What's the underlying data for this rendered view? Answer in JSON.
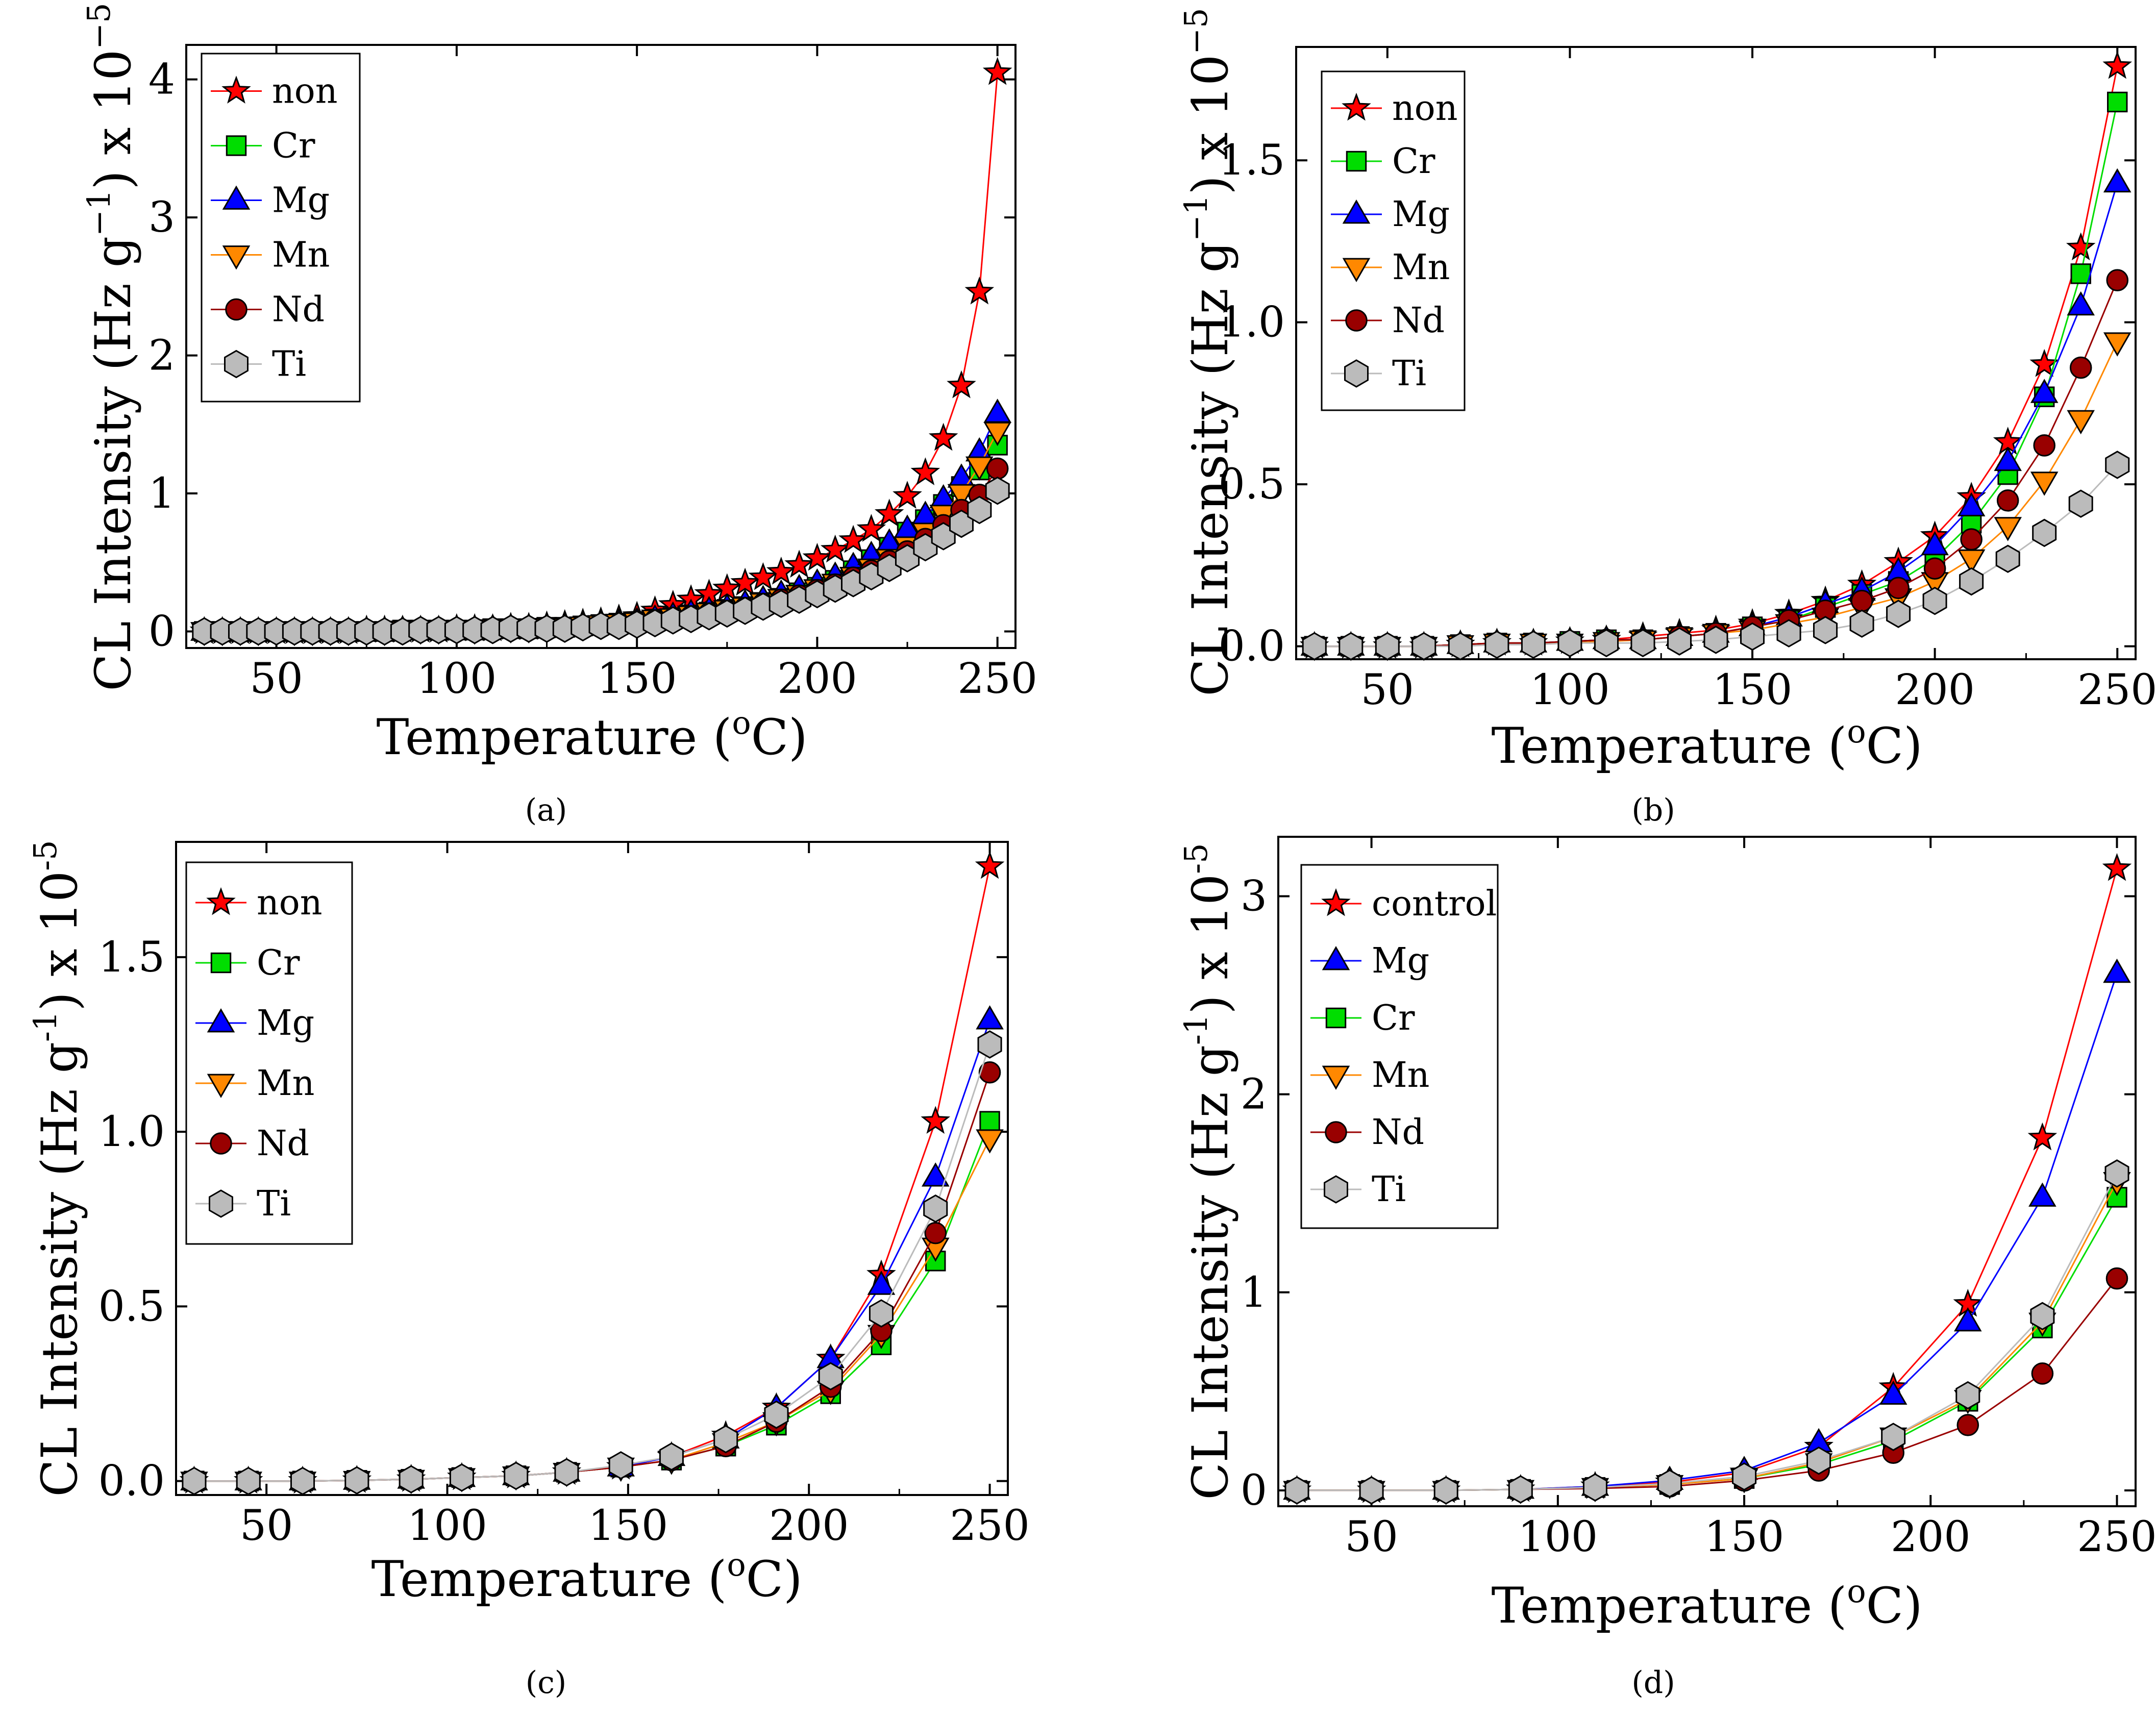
{
  "figure_labels": [
    "(a)",
    "(b)",
    "(c)",
    "(d)"
  ],
  "chart_data": [
    {
      "type": "line",
      "panel": "(a)",
      "xlabel": "Temperature (oC)",
      "xlabel_parts": {
        "main": "Temperature (",
        "sup": "o",
        "end": "C)"
      },
      "ylabel": "CL Intensity (Hz g-1) x 10-5",
      "ylabel_parts": {
        "main": "CL Intensity (Hz g",
        "sup1": "−1",
        "mid": ") x 10",
        "sup2": "−5"
      },
      "xlim": [
        25,
        255
      ],
      "ylim": [
        -0.12,
        4.25
      ],
      "xticks": [
        50,
        100,
        150,
        200,
        250
      ],
      "yticks": [
        0,
        1,
        2,
        3,
        4
      ],
      "ytick_labels": [
        "0",
        "1",
        "2",
        "3",
        "4"
      ],
      "x": [
        30,
        35,
        40,
        45,
        50,
        55,
        60,
        65,
        70,
        75,
        80,
        85,
        90,
        95,
        100,
        105,
        110,
        115,
        120,
        125,
        130,
        135,
        140,
        145,
        150,
        155,
        160,
        165,
        170,
        175,
        180,
        185,
        190,
        195,
        200,
        205,
        210,
        215,
        220,
        225,
        230,
        235,
        240,
        245,
        250
      ],
      "legend": {
        "position": "top-left",
        "entries": [
          "non",
          "Cr",
          "Mg",
          "Mn",
          "Nd",
          "Ti"
        ]
      },
      "series": [
        {
          "name": "non",
          "marker": "star",
          "color": "#ff0000",
          "values": [
            0,
            0,
            0,
            0,
            0,
            0,
            0,
            0,
            0,
            0.01,
            0.01,
            0.01,
            0.01,
            0.01,
            0.02,
            0.02,
            0.02,
            0.03,
            0.03,
            0.04,
            0.05,
            0.06,
            0.07,
            0.09,
            0.11,
            0.15,
            0.19,
            0.23,
            0.27,
            0.31,
            0.35,
            0.39,
            0.43,
            0.48,
            0.53,
            0.59,
            0.66,
            0.74,
            0.85,
            0.98,
            1.15,
            1.4,
            1.78,
            2.46,
            4.05
          ]
        },
        {
          "name": "Cr",
          "marker": "square",
          "color": "#00dd00",
          "values": [
            0,
            0,
            0,
            0,
            0,
            0,
            0,
            0,
            0,
            0,
            0,
            0.01,
            0.01,
            0.01,
            0.01,
            0.01,
            0.02,
            0.02,
            0.02,
            0.03,
            0.03,
            0.04,
            0.05,
            0.06,
            0.07,
            0.09,
            0.1,
            0.12,
            0.14,
            0.16,
            0.18,
            0.21,
            0.24,
            0.28,
            0.32,
            0.37,
            0.44,
            0.52,
            0.61,
            0.72,
            0.81,
            0.92,
            1.05,
            1.17,
            1.35
          ]
        },
        {
          "name": "Mg",
          "marker": "triangle-up",
          "color": "#0000ff",
          "values": [
            0,
            0,
            0,
            0,
            0,
            0,
            0,
            0,
            0,
            0,
            0,
            0.01,
            0.01,
            0.01,
            0.01,
            0.01,
            0.02,
            0.02,
            0.02,
            0.03,
            0.03,
            0.04,
            0.05,
            0.06,
            0.07,
            0.09,
            0.11,
            0.13,
            0.15,
            0.17,
            0.2,
            0.23,
            0.27,
            0.31,
            0.35,
            0.4,
            0.47,
            0.55,
            0.64,
            0.74,
            0.84,
            0.96,
            1.11,
            1.3,
            1.58
          ]
        },
        {
          "name": "Mn",
          "marker": "triangle-down",
          "color": "#ff8800",
          "values": [
            0,
            0,
            0,
            0,
            0,
            0,
            0,
            0,
            0,
            0,
            0,
            0.01,
            0.01,
            0.01,
            0.01,
            0.01,
            0.02,
            0.02,
            0.02,
            0.03,
            0.03,
            0.04,
            0.05,
            0.06,
            0.07,
            0.09,
            0.1,
            0.12,
            0.14,
            0.16,
            0.18,
            0.21,
            0.24,
            0.27,
            0.31,
            0.35,
            0.4,
            0.46,
            0.53,
            0.62,
            0.72,
            0.85,
            1.0,
            1.2,
            1.45
          ]
        },
        {
          "name": "Nd",
          "marker": "circle",
          "color": "#990000",
          "values": [
            0,
            0,
            0,
            0,
            0,
            0,
            0,
            0,
            0,
            0,
            0,
            0,
            0.01,
            0.01,
            0.01,
            0.01,
            0.01,
            0.02,
            0.02,
            0.02,
            0.03,
            0.03,
            0.04,
            0.05,
            0.06,
            0.08,
            0.09,
            0.11,
            0.13,
            0.15,
            0.17,
            0.2,
            0.23,
            0.26,
            0.3,
            0.34,
            0.39,
            0.44,
            0.51,
            0.58,
            0.67,
            0.77,
            0.88,
            0.99,
            1.18
          ]
        },
        {
          "name": "Ti",
          "marker": "hexagon",
          "color": "#bbbbbb",
          "values": [
            0,
            0,
            0,
            0,
            0,
            0,
            0,
            0,
            0,
            0,
            0,
            0,
            0.01,
            0.01,
            0.01,
            0.01,
            0.01,
            0.02,
            0.02,
            0.02,
            0.02,
            0.03,
            0.04,
            0.04,
            0.05,
            0.06,
            0.08,
            0.09,
            0.11,
            0.13,
            0.15,
            0.18,
            0.2,
            0.23,
            0.27,
            0.31,
            0.35,
            0.4,
            0.46,
            0.53,
            0.61,
            0.69,
            0.78,
            0.88,
            1.02
          ]
        }
      ]
    },
    {
      "type": "line",
      "panel": "(b)",
      "xlabel": "Temperature (oC)",
      "xlabel_parts": {
        "main": "Temperature (",
        "sup": "o",
        "end": "C)"
      },
      "ylabel": "CL Intensity (Hz g-1) x 10-5",
      "ylabel_parts": {
        "main": "CL Intensity (Hz g",
        "sup1": "−1",
        "mid": ") x 10",
        "sup2": "−5"
      },
      "xlim": [
        25,
        255
      ],
      "ylim": [
        -0.04,
        1.85
      ],
      "xticks": [
        50,
        100,
        150,
        200,
        250
      ],
      "yticks": [
        0,
        0.5,
        1.0,
        1.5
      ],
      "ytick_labels": [
        "0.0",
        "0.5",
        "1.0",
        "1.5"
      ],
      "x": [
        30,
        40,
        50,
        60,
        70,
        80,
        90,
        100,
        110,
        120,
        130,
        140,
        150,
        160,
        170,
        180,
        190,
        200,
        210,
        220,
        230,
        240,
        250
      ],
      "legend": {
        "position": "top-left",
        "entries": [
          "non",
          "Cr",
          "Mg",
          "Mn",
          "Nd",
          "Ti"
        ]
      },
      "series": [
        {
          "name": "non",
          "marker": "star",
          "color": "#ff0000",
          "values": [
            0,
            0,
            0,
            0,
            0.005,
            0.01,
            0.01,
            0.015,
            0.02,
            0.03,
            0.04,
            0.05,
            0.07,
            0.1,
            0.14,
            0.19,
            0.26,
            0.34,
            0.46,
            0.63,
            0.87,
            1.23,
            1.79
          ]
        },
        {
          "name": "Cr",
          "marker": "square",
          "color": "#00dd00",
          "values": [
            0,
            0,
            0,
            0,
            0.005,
            0.01,
            0.01,
            0.015,
            0.02,
            0.02,
            0.03,
            0.04,
            0.06,
            0.08,
            0.12,
            0.16,
            0.2,
            0.27,
            0.38,
            0.53,
            0.77,
            1.15,
            1.68
          ]
        },
        {
          "name": "Mg",
          "marker": "triangle-up",
          "color": "#0000ff",
          "values": [
            0,
            0,
            0,
            0,
            0.005,
            0.01,
            0.01,
            0.015,
            0.02,
            0.02,
            0.03,
            0.04,
            0.06,
            0.09,
            0.13,
            0.17,
            0.23,
            0.31,
            0.43,
            0.57,
            0.78,
            1.05,
            1.43
          ]
        },
        {
          "name": "Mn",
          "marker": "triangle-down",
          "color": "#ff8800",
          "values": [
            0,
            0,
            0,
            0,
            0.005,
            0.01,
            0.01,
            0.01,
            0.015,
            0.02,
            0.03,
            0.04,
            0.05,
            0.07,
            0.09,
            0.12,
            0.15,
            0.2,
            0.27,
            0.37,
            0.51,
            0.7,
            0.94
          ]
        },
        {
          "name": "Nd",
          "marker": "circle",
          "color": "#990000",
          "values": [
            0,
            0,
            0,
            0,
            0.005,
            0.01,
            0.01,
            0.015,
            0.02,
            0.02,
            0.03,
            0.04,
            0.06,
            0.08,
            0.11,
            0.14,
            0.18,
            0.24,
            0.33,
            0.45,
            0.62,
            0.86,
            1.13
          ]
        },
        {
          "name": "Ti",
          "marker": "hexagon",
          "color": "#bbbbbb",
          "values": [
            0,
            0,
            0,
            0,
            0,
            0.005,
            0.005,
            0.01,
            0.01,
            0.01,
            0.015,
            0.02,
            0.03,
            0.04,
            0.05,
            0.07,
            0.1,
            0.14,
            0.2,
            0.27,
            0.35,
            0.44,
            0.56
          ]
        }
      ]
    },
    {
      "type": "line",
      "panel": "(c)",
      "xlabel": "Temperature (oC)",
      "xlabel_parts": {
        "main": "Temperature (",
        "sup": "o",
        "end": "C)"
      },
      "ylabel": "CL Intensity (Hz g-1) x 10-5",
      "ylabel_parts": {
        "main": "CL Intensity (Hz g",
        "sup1": "-1",
        "mid": ") x 10",
        "sup2": "-5"
      },
      "xlim": [
        25,
        255
      ],
      "ylim": [
        -0.04,
        1.83
      ],
      "xticks": [
        50,
        100,
        150,
        200,
        250
      ],
      "yticks": [
        0,
        0.5,
        1.0,
        1.5
      ],
      "ytick_labels": [
        "0.0",
        "0.5",
        "1.0",
        "1.5"
      ],
      "x": [
        30,
        45,
        60,
        75,
        90,
        104,
        119,
        133,
        148,
        162,
        177,
        191,
        206,
        220,
        235,
        250
      ],
      "legend": {
        "position": "top-left",
        "entries": [
          "non",
          "Cr",
          "Mg",
          "Mn",
          "Nd",
          "Ti"
        ]
      },
      "series": [
        {
          "name": "non",
          "marker": "star",
          "color": "#ff0000",
          "values": [
            0,
            0,
            0,
            0.002,
            0.005,
            0.01,
            0.015,
            0.025,
            0.04,
            0.07,
            0.13,
            0.21,
            0.35,
            0.59,
            1.03,
            1.76
          ]
        },
        {
          "name": "Cr",
          "marker": "square",
          "color": "#00dd00",
          "values": [
            0,
            0,
            0,
            0.002,
            0.005,
            0.01,
            0.015,
            0.025,
            0.04,
            0.06,
            0.1,
            0.16,
            0.25,
            0.39,
            0.63,
            1.03
          ]
        },
        {
          "name": "Mg",
          "marker": "triangle-up",
          "color": "#0000ff",
          "values": [
            0,
            0,
            0,
            0.002,
            0.005,
            0.01,
            0.015,
            0.025,
            0.04,
            0.07,
            0.12,
            0.21,
            0.35,
            0.56,
            0.87,
            1.32
          ]
        },
        {
          "name": "Mn",
          "marker": "triangle-down",
          "color": "#ff8800",
          "values": [
            0,
            0,
            0,
            0.002,
            0.005,
            0.01,
            0.015,
            0.025,
            0.04,
            0.06,
            0.11,
            0.17,
            0.26,
            0.42,
            0.67,
            0.98
          ]
        },
        {
          "name": "Nd",
          "marker": "circle",
          "color": "#990000",
          "values": [
            0,
            0,
            0,
            0.002,
            0.005,
            0.01,
            0.015,
            0.025,
            0.04,
            0.06,
            0.1,
            0.17,
            0.27,
            0.43,
            0.71,
            1.17
          ]
        },
        {
          "name": "Ti",
          "marker": "hexagon",
          "color": "#bbbbbb",
          "values": [
            0,
            0,
            0,
            0.002,
            0.005,
            0.01,
            0.015,
            0.025,
            0.045,
            0.07,
            0.12,
            0.19,
            0.3,
            0.48,
            0.78,
            1.25
          ]
        }
      ]
    },
    {
      "type": "line",
      "panel": "(d)",
      "xlabel": "Temperature (oC)",
      "xlabel_parts": {
        "main": "Temperature (",
        "sup": "o",
        "end": "C)"
      },
      "ylabel": "CL Intensity (Hz g-1) x 10-5",
      "ylabel_parts": {
        "main": "CL Intensity (Hz g",
        "sup1": "-1",
        "mid": ") x 10",
        "sup2": "-5"
      },
      "xlim": [
        25,
        255
      ],
      "ylim": [
        -0.08,
        3.3
      ],
      "xticks": [
        50,
        100,
        150,
        200,
        250
      ],
      "yticks": [
        0,
        1,
        2,
        3
      ],
      "ytick_labels": [
        "0",
        "1",
        "2",
        "3"
      ],
      "x": [
        30,
        50,
        70,
        90,
        110,
        130,
        150,
        170,
        190,
        210,
        230,
        250
      ],
      "legend": {
        "position": "top-left",
        "entries": [
          "control",
          "Mg",
          "Cr",
          "Mn",
          "Nd",
          "Ti"
        ]
      },
      "series": [
        {
          "name": "control",
          "marker": "star",
          "color": "#ff0000",
          "values": [
            0,
            0,
            0,
            0.005,
            0.02,
            0.04,
            0.09,
            0.22,
            0.52,
            0.94,
            1.78,
            3.14
          ]
        },
        {
          "name": "Mg",
          "marker": "triangle-up",
          "color": "#0000ff",
          "values": [
            0,
            0,
            0,
            0.005,
            0.02,
            0.05,
            0.1,
            0.24,
            0.48,
            0.85,
            1.48,
            2.61
          ]
        },
        {
          "name": "Cr",
          "marker": "square",
          "color": "#00dd00",
          "values": [
            0,
            0,
            0,
            0.005,
            0.015,
            0.03,
            0.06,
            0.13,
            0.25,
            0.45,
            0.82,
            1.48
          ]
        },
        {
          "name": "Mn",
          "marker": "triangle-down",
          "color": "#ff8800",
          "values": [
            0,
            0,
            0,
            0.005,
            0.015,
            0.03,
            0.06,
            0.14,
            0.27,
            0.46,
            0.85,
            1.56
          ]
        },
        {
          "name": "Nd",
          "marker": "circle",
          "color": "#990000",
          "values": [
            0,
            0,
            0,
            0.005,
            0.01,
            0.02,
            0.05,
            0.1,
            0.19,
            0.33,
            0.59,
            1.07
          ]
        },
        {
          "name": "Ti",
          "marker": "hexagon",
          "color": "#bbbbbb",
          "values": [
            0,
            0,
            0,
            0.005,
            0.015,
            0.035,
            0.07,
            0.15,
            0.27,
            0.48,
            0.88,
            1.6
          ]
        }
      ]
    }
  ]
}
